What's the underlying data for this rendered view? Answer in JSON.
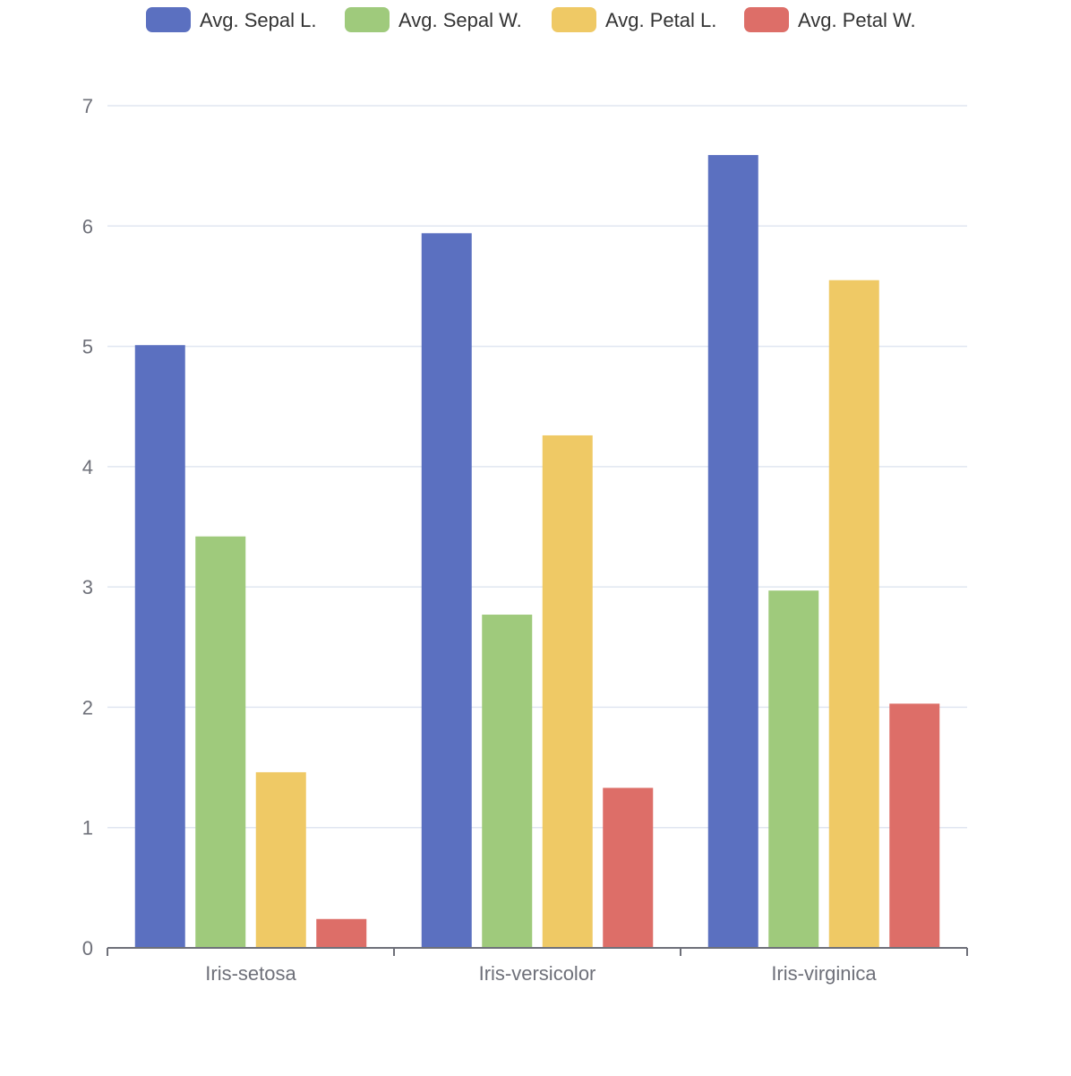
{
  "chart_data": {
    "type": "bar",
    "title": "",
    "xlabel": "",
    "ylabel": "",
    "categories": [
      "Iris-setosa",
      "Iris-versicolor",
      "Iris-virginica"
    ],
    "series": [
      {
        "name": "Avg. Sepal L.",
        "color": "#5b70c0",
        "values": [
          5.01,
          5.94,
          6.59
        ]
      },
      {
        "name": "Avg. Sepal W.",
        "color": "#9fca7c",
        "values": [
          3.42,
          2.77,
          2.97
        ]
      },
      {
        "name": "Avg. Petal L.",
        "color": "#efc965",
        "values": [
          1.46,
          4.26,
          5.55
        ]
      },
      {
        "name": "Avg. Petal W.",
        "color": "#dd6e68",
        "values": [
          0.24,
          1.33,
          2.03
        ]
      }
    ],
    "ylim": [
      0,
      7
    ],
    "yticks": [
      0,
      1,
      2,
      3,
      4,
      5,
      6,
      7
    ],
    "grid": true,
    "legend_position": "top-center"
  }
}
